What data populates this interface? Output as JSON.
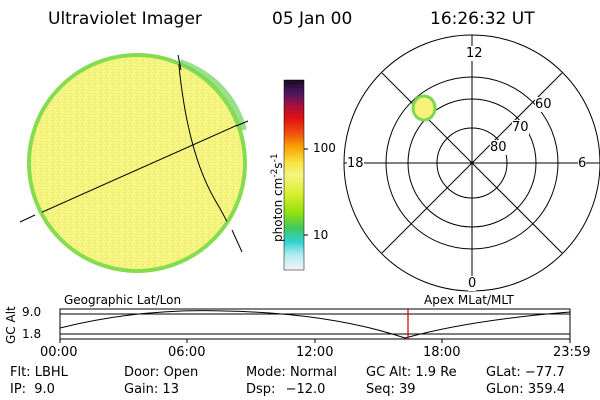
{
  "header": {
    "instrument": "Ultraviolet Imager",
    "date": "05 Jan 00",
    "time": "16:26:32 UT"
  },
  "colorbar": {
    "unit_label": "photon cm",
    "unit_sup1": "-2",
    "unit_mid": "s",
    "unit_sup2": "-1",
    "tick_high": "100",
    "tick_low": "10"
  },
  "polar": {
    "mlt_top": "12",
    "mlt_left": "18",
    "mlt_right": "6",
    "mlt_bottom": "0",
    "lat_60": "60",
    "lat_70": "70",
    "lat_80": "80"
  },
  "timeline": {
    "ylabel": "GC Alt",
    "y_top": "9.0",
    "y_bottom": "1.8",
    "left_header": "Geographic Lat/Lon",
    "right_header": "Apex MLat/MLT",
    "ticks": [
      "00:00",
      "06:00",
      "12:00",
      "18:00",
      "23:59"
    ]
  },
  "status": {
    "flt_label": "Flt:",
    "flt_value": "LBHL",
    "ip_label": "IP:",
    "ip_value": "9.0",
    "door_label": "Door:",
    "door_value": "Open",
    "gain_label": "Gain:",
    "gain_value": "13",
    "mode_label": "Mode:",
    "mode_value": "Normal",
    "dsp_label": "Dsp:",
    "dsp_value": "−12.0",
    "gcalt_label": "GC Alt:",
    "gcalt_value": "1.9 Re",
    "seq_label": "Seq:",
    "seq_value": "39",
    "glat_label": "GLat:",
    "glat_value": "−77.7",
    "glon_label": "GLon:",
    "glon_value": "359.4"
  },
  "colors": {
    "disk_fill": "#f2f47a",
    "disk_edge": "#7cdc52",
    "current_time_marker": "#cc0000"
  }
}
